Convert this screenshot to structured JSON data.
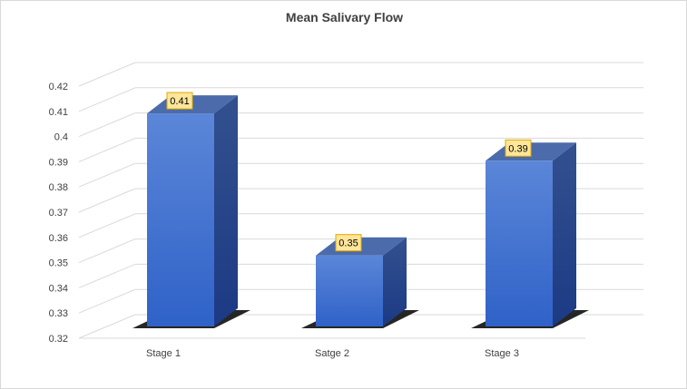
{
  "chart_data": {
    "type": "bar",
    "title": "Mean Salivary Flow",
    "categories": [
      "Stage 1",
      "Satge 2",
      "Stage 3"
    ],
    "values": [
      0.41,
      0.35,
      0.39
    ],
    "data_labels": [
      "0.41",
      "0.35",
      "0.39"
    ],
    "xlabel": "",
    "ylabel": "",
    "ylim": [
      0.32,
      0.42
    ],
    "y_ticks": [
      "0.32",
      "0.33",
      "0.34",
      "0.35",
      "0.36",
      "0.37",
      "0.38",
      "0.39",
      "0.4",
      "0.41",
      "0.42"
    ],
    "grid": true,
    "legend": "none",
    "colors": {
      "bar_front": "#3f72d0",
      "bar_top": "#4b6bab",
      "bar_side": "#243f87",
      "label_bg": "#ffe699",
      "label_border": "#e0a800",
      "grid": "#d9d9d9",
      "floor_shadow": "#000000"
    }
  }
}
